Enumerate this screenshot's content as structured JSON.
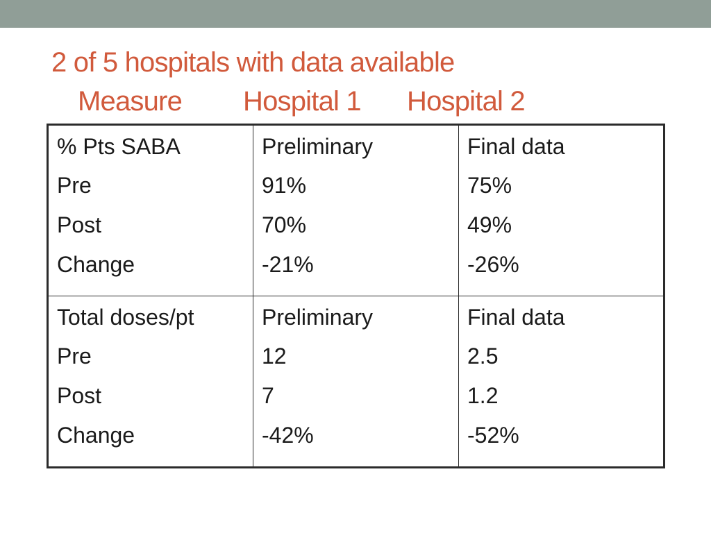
{
  "title": {
    "line1": "2 of 5 hospitals with data available",
    "headers": [
      "Measure",
      "Hospital 1",
      "Hospital 2"
    ]
  },
  "table": {
    "rows": [
      [
        [
          "% Pts SABA",
          "Pre",
          "Post",
          "Change"
        ],
        [
          "Preliminary",
          "91%",
          "70%",
          "-21%"
        ],
        [
          "Final data",
          "75%",
          "49%",
          "-26%"
        ]
      ],
      [
        [
          "Total doses/pt",
          "Pre",
          "Post",
          "Change"
        ],
        [
          "Preliminary",
          "12",
          "7",
          "-42%"
        ],
        [
          "Final data",
          "2.5",
          "1.2",
          "-52%"
        ]
      ]
    ]
  },
  "colors": {
    "title": "#d15a3c",
    "top_bar": "#909e97",
    "text": "#1a1a1a",
    "border": "#2b2b2b"
  }
}
